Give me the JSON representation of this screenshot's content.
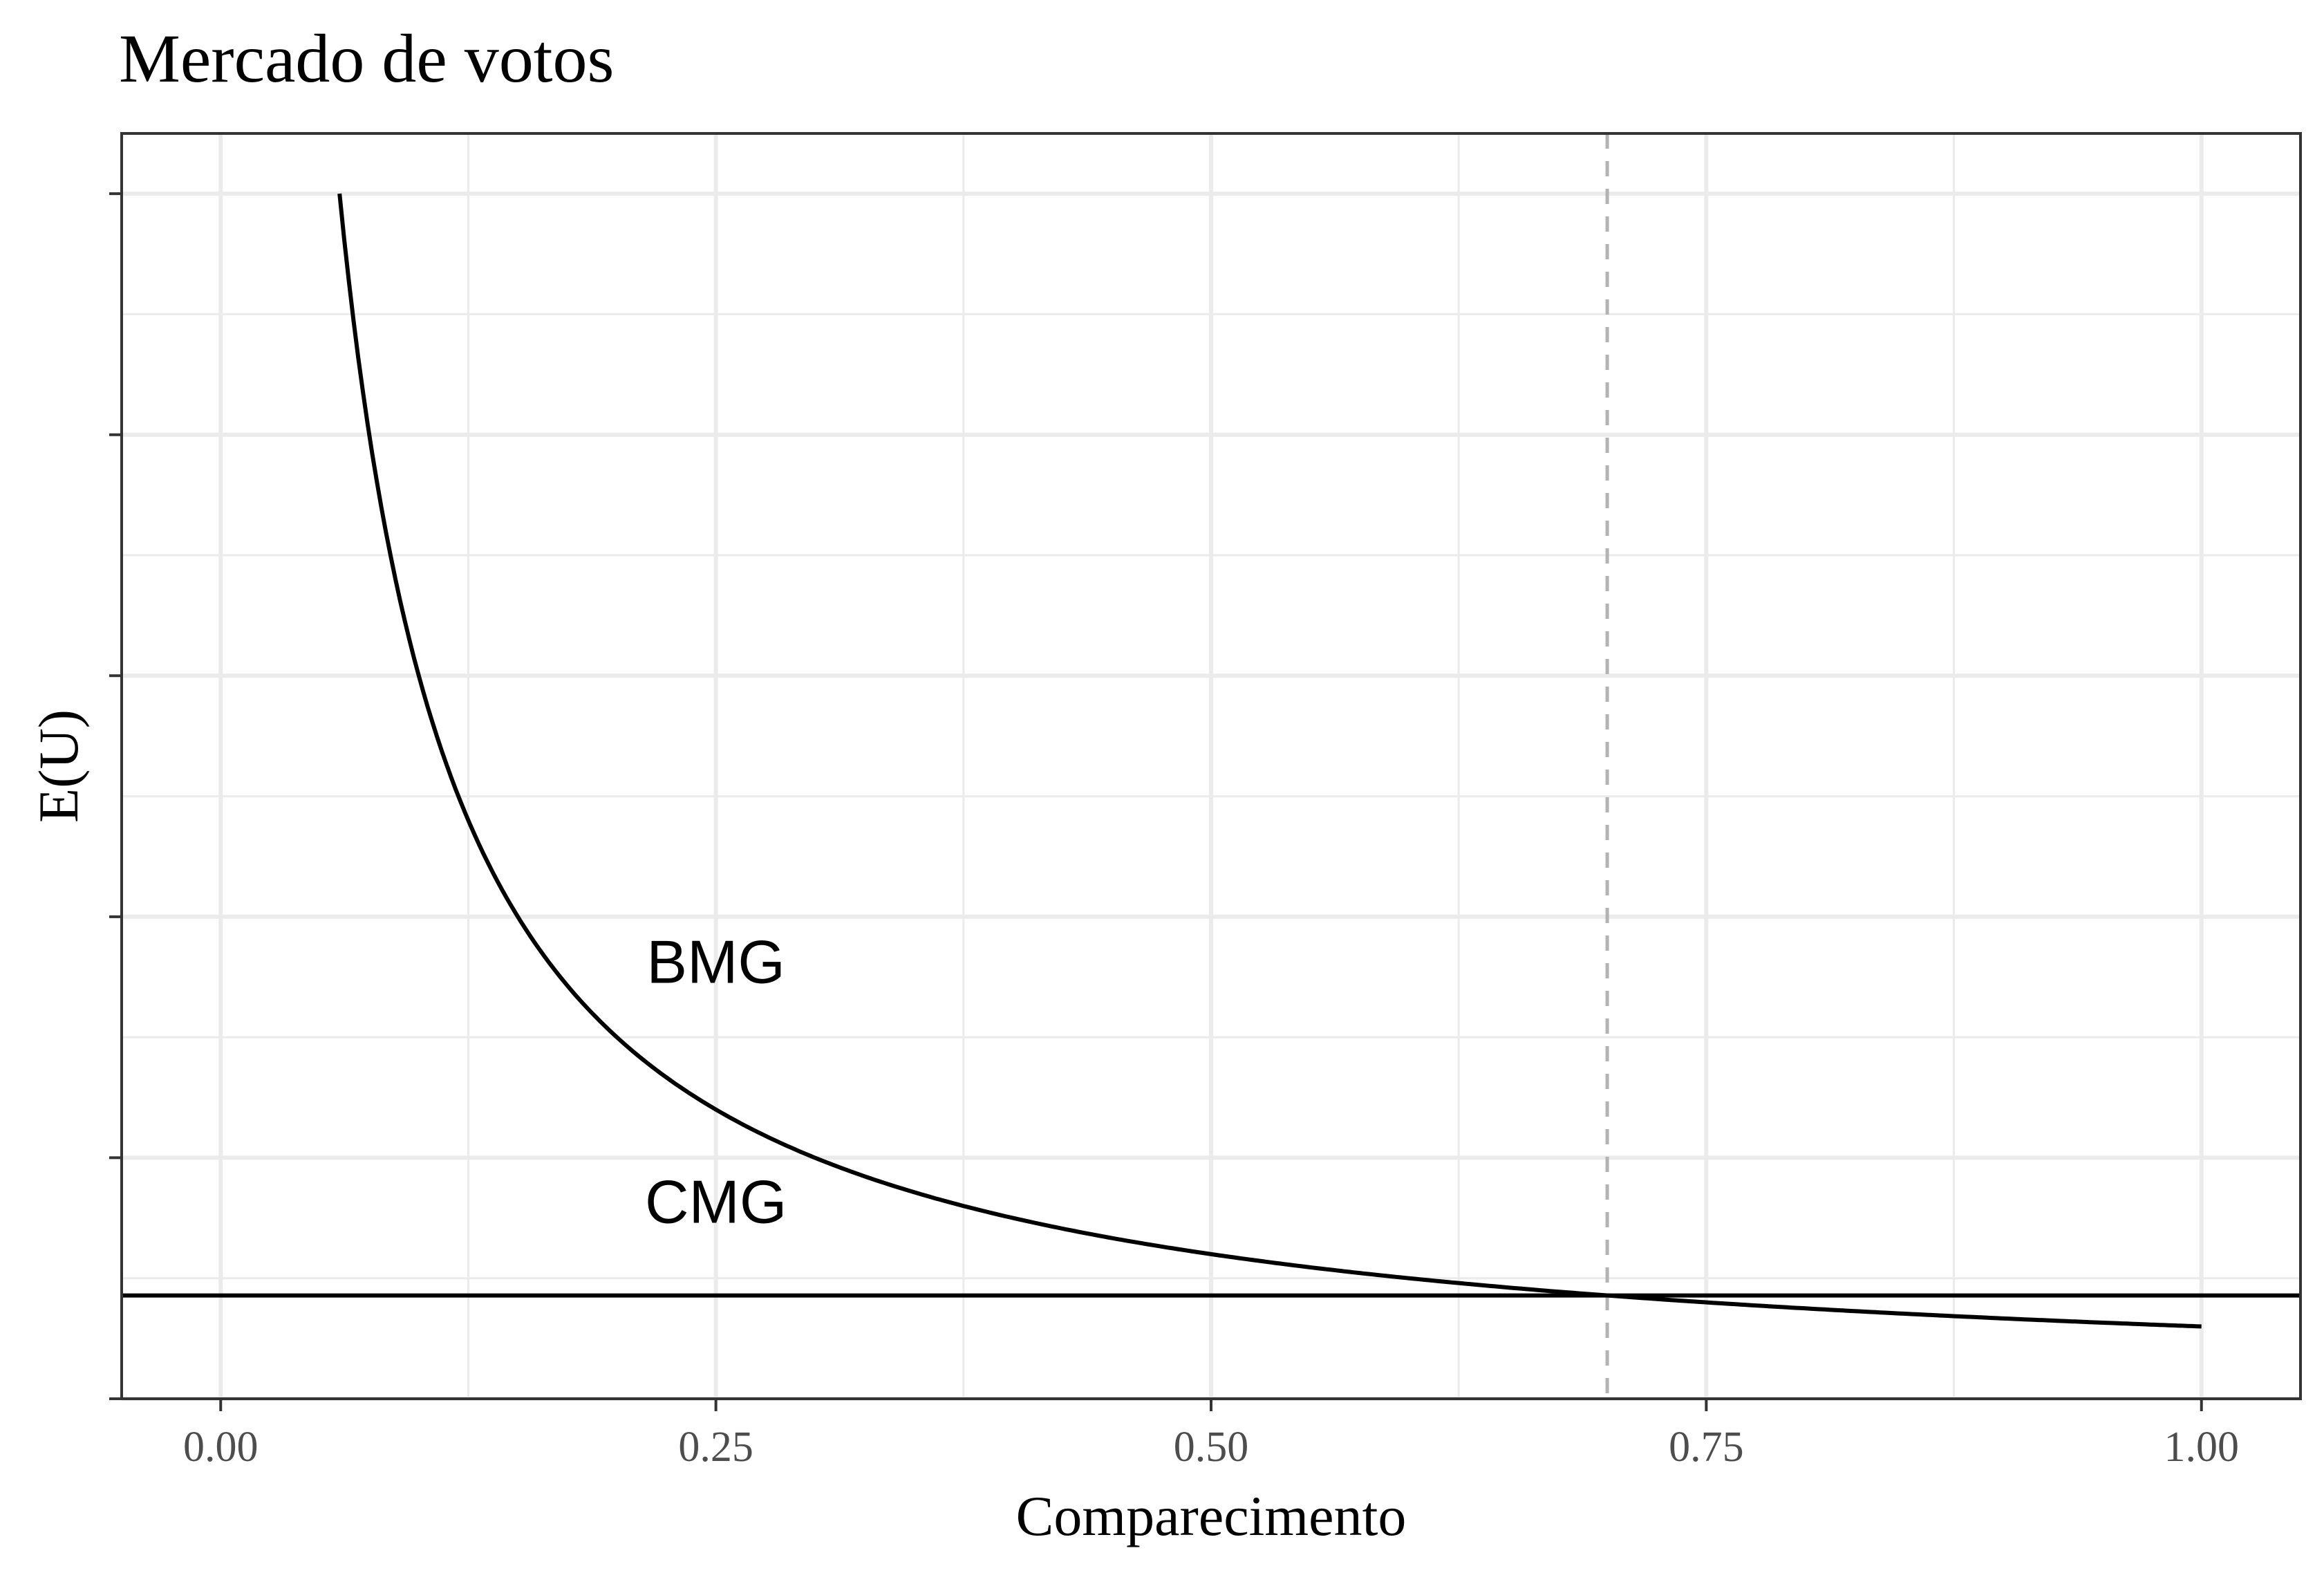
{
  "chart_data": {
    "type": "line",
    "title": "Mercado de votos",
    "xlabel": "Comparecimento",
    "ylabel": "E(U)",
    "xlim": [
      -0.05,
      1.05
    ],
    "ylim": [
      0,
      1.05
    ],
    "x_ticks": [
      0.0,
      0.25,
      0.5,
      0.75,
      1.0
    ],
    "x_tick_labels": [
      "0.00",
      "0.25",
      "0.50",
      "0.75",
      "1.00"
    ],
    "y_tick_labels_shown": false,
    "grid": true,
    "series": [
      {
        "name": "BMG",
        "x": [
          0.06,
          0.07,
          0.08,
          0.09,
          0.1,
          0.12,
          0.14,
          0.16,
          0.18,
          0.2,
          0.22,
          0.25,
          0.3,
          0.35,
          0.4,
          0.45,
          0.5,
          0.55,
          0.6,
          0.65,
          0.7,
          0.75,
          0.8,
          0.85,
          0.9,
          0.95,
          1.0
        ],
        "y": [
          1.0,
          0.857,
          0.75,
          0.667,
          0.6,
          0.5,
          0.429,
          0.375,
          0.333,
          0.3,
          0.273,
          0.24,
          0.2,
          0.171,
          0.15,
          0.133,
          0.12,
          0.109,
          0.1,
          0.092,
          0.086,
          0.08,
          0.075,
          0.071,
          0.067,
          0.063,
          0.06
        ]
      },
      {
        "name": "CMG",
        "x": [
          -0.05,
          1.05
        ],
        "y": [
          0.0857,
          0.0857
        ]
      }
    ],
    "annotations": [
      {
        "text": "BMG",
        "x": 0.25,
        "y": 0.345
      },
      {
        "text": "CMG",
        "x": 0.25,
        "y": 0.146
      }
    ],
    "reference_line": {
      "x": 0.7,
      "style": "dashed",
      "color": "#b3b3b3"
    },
    "colors": {
      "line": "#000000",
      "grid": "#ebebeb",
      "panel_border": "#333333"
    }
  }
}
